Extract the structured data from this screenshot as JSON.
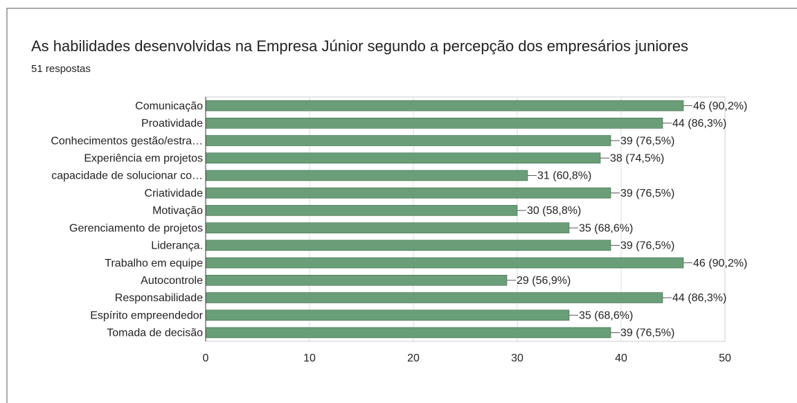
{
  "chart_data": {
    "type": "bar",
    "orientation": "horizontal",
    "title": "As habilidades desenvolvidas na Empresa Júnior segundo a percepção dos empresários juniores",
    "subtitle": "51 respostas",
    "categories": [
      "Comunicação",
      "Proatividade",
      "Conhecimentos gestão/estra…",
      "Experiência em projetos",
      "capacidade de solucionar co…",
      "Criatividade",
      "Motivação",
      "Gerenciamento de projetos",
      "Liderança.",
      "Trabalho em equipe",
      "Autocontrole",
      "Responsabilidade",
      "Espírito empreendedor",
      "Tomada de decisão"
    ],
    "values": [
      46,
      44,
      39,
      38,
      31,
      39,
      30,
      35,
      39,
      46,
      29,
      44,
      35,
      39
    ],
    "value_labels": [
      "46 (90,2%)",
      "44 (86,3%)",
      "39 (76,5%)",
      "38 (74,5%)",
      "31 (60,8%)",
      "39 (76,5%)",
      "30 (58,8%)",
      "35 (68,6%)",
      "39 (76,5%)",
      "46 (90,2%)",
      "29 (56,9%)",
      "44 (86,3%)",
      "35 (68,6%)",
      "39 (76,5%)"
    ],
    "color": "#6a9e78",
    "xlim": [
      0,
      50
    ],
    "xticks": [
      0,
      10,
      20,
      30,
      40,
      50
    ],
    "grid": true
  }
}
